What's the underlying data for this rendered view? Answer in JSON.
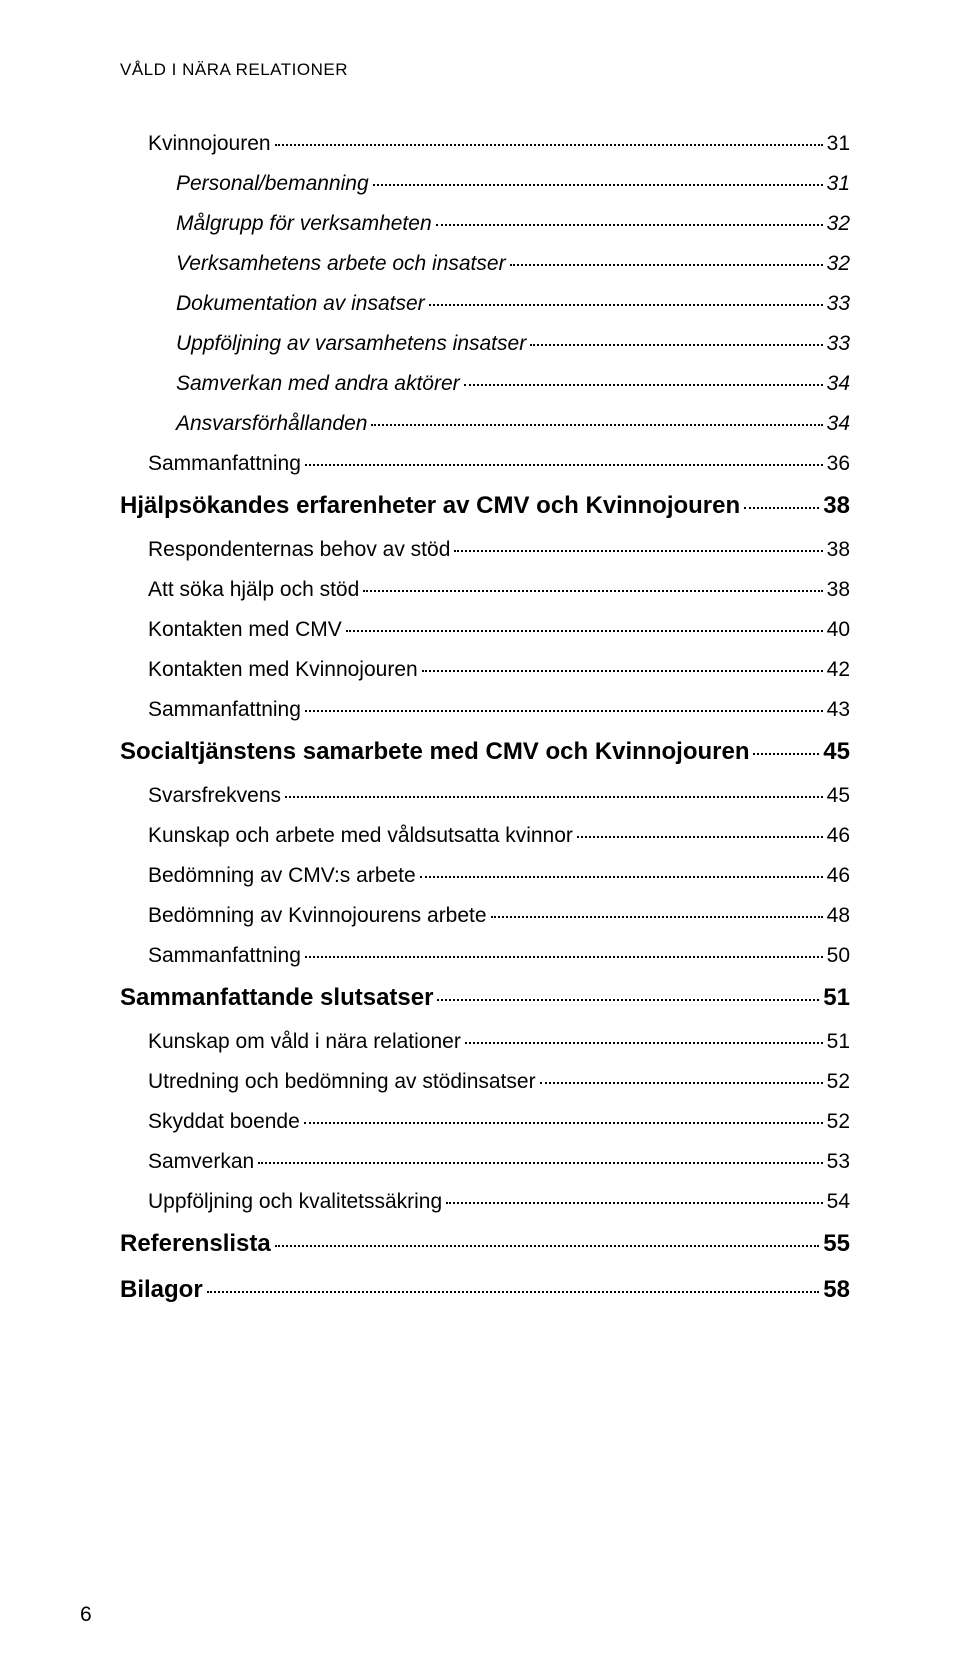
{
  "running_head": "VÅLD I NÄRA RELATIONER",
  "page_number": "6",
  "toc": [
    {
      "level": 2,
      "label": "Kvinnojouren",
      "page": "31"
    },
    {
      "level": 3,
      "label": "Personal/bemanning",
      "page": "31"
    },
    {
      "level": 3,
      "label": "Målgrupp för verksamheten",
      "page": "32"
    },
    {
      "level": 3,
      "label": "Verksamhetens arbete och insatser",
      "page": "32"
    },
    {
      "level": 3,
      "label": "Dokumentation av insatser",
      "page": "33"
    },
    {
      "level": 3,
      "label": "Uppföljning av varsamhetens insatser",
      "page": "33"
    },
    {
      "level": 3,
      "label": "Samverkan med andra aktörer",
      "page": "34"
    },
    {
      "level": 3,
      "label": "Ansvarsförhållanden",
      "page": "34"
    },
    {
      "level": 2,
      "label": "Sammanfattning",
      "page": "36"
    },
    {
      "level": 1,
      "label": "Hjälpsökandes erfarenheter av CMV och Kvinnojouren",
      "page": "38"
    },
    {
      "level": 2,
      "label": "Respondenternas behov av stöd",
      "page": "38"
    },
    {
      "level": 2,
      "label": "Att söka hjälp och stöd",
      "page": "38"
    },
    {
      "level": 2,
      "label": "Kontakten med CMV",
      "page": "40"
    },
    {
      "level": 2,
      "label": "Kontakten med Kvinnojouren",
      "page": "42"
    },
    {
      "level": 2,
      "label": "Sammanfattning",
      "page": "43"
    },
    {
      "level": 1,
      "label": "Socialtjänstens samarbete med CMV och Kvinnojouren",
      "page": "45"
    },
    {
      "level": 2,
      "label": "Svarsfrekvens",
      "page": "45"
    },
    {
      "level": 2,
      "label": "Kunskap och arbete med våldsutsatta kvinnor",
      "page": "46"
    },
    {
      "level": 2,
      "label": "Bedömning av CMV:s arbete",
      "page": "46"
    },
    {
      "level": 2,
      "label": "Bedömning av Kvinnojourens arbete",
      "page": "48"
    },
    {
      "level": 2,
      "label": "Sammanfattning",
      "page": "50"
    },
    {
      "level": 1,
      "label": "Sammanfattande slutsatser",
      "page": "51"
    },
    {
      "level": 2,
      "label": "Kunskap om våld i nära relationer",
      "page": "51"
    },
    {
      "level": 2,
      "label": "Utredning och bedömning av stödinsatser",
      "page": "52"
    },
    {
      "level": 2,
      "label": "Skyddat boende",
      "page": "52"
    },
    {
      "level": 2,
      "label": "Samverkan",
      "page": "53"
    },
    {
      "level": 2,
      "label": "Uppföljning och kvalitetssäkring",
      "page": "54"
    },
    {
      "level": 1,
      "label": "Referenslista",
      "page": "55"
    },
    {
      "level": 1,
      "label": "Bilagor",
      "page": "58"
    }
  ]
}
